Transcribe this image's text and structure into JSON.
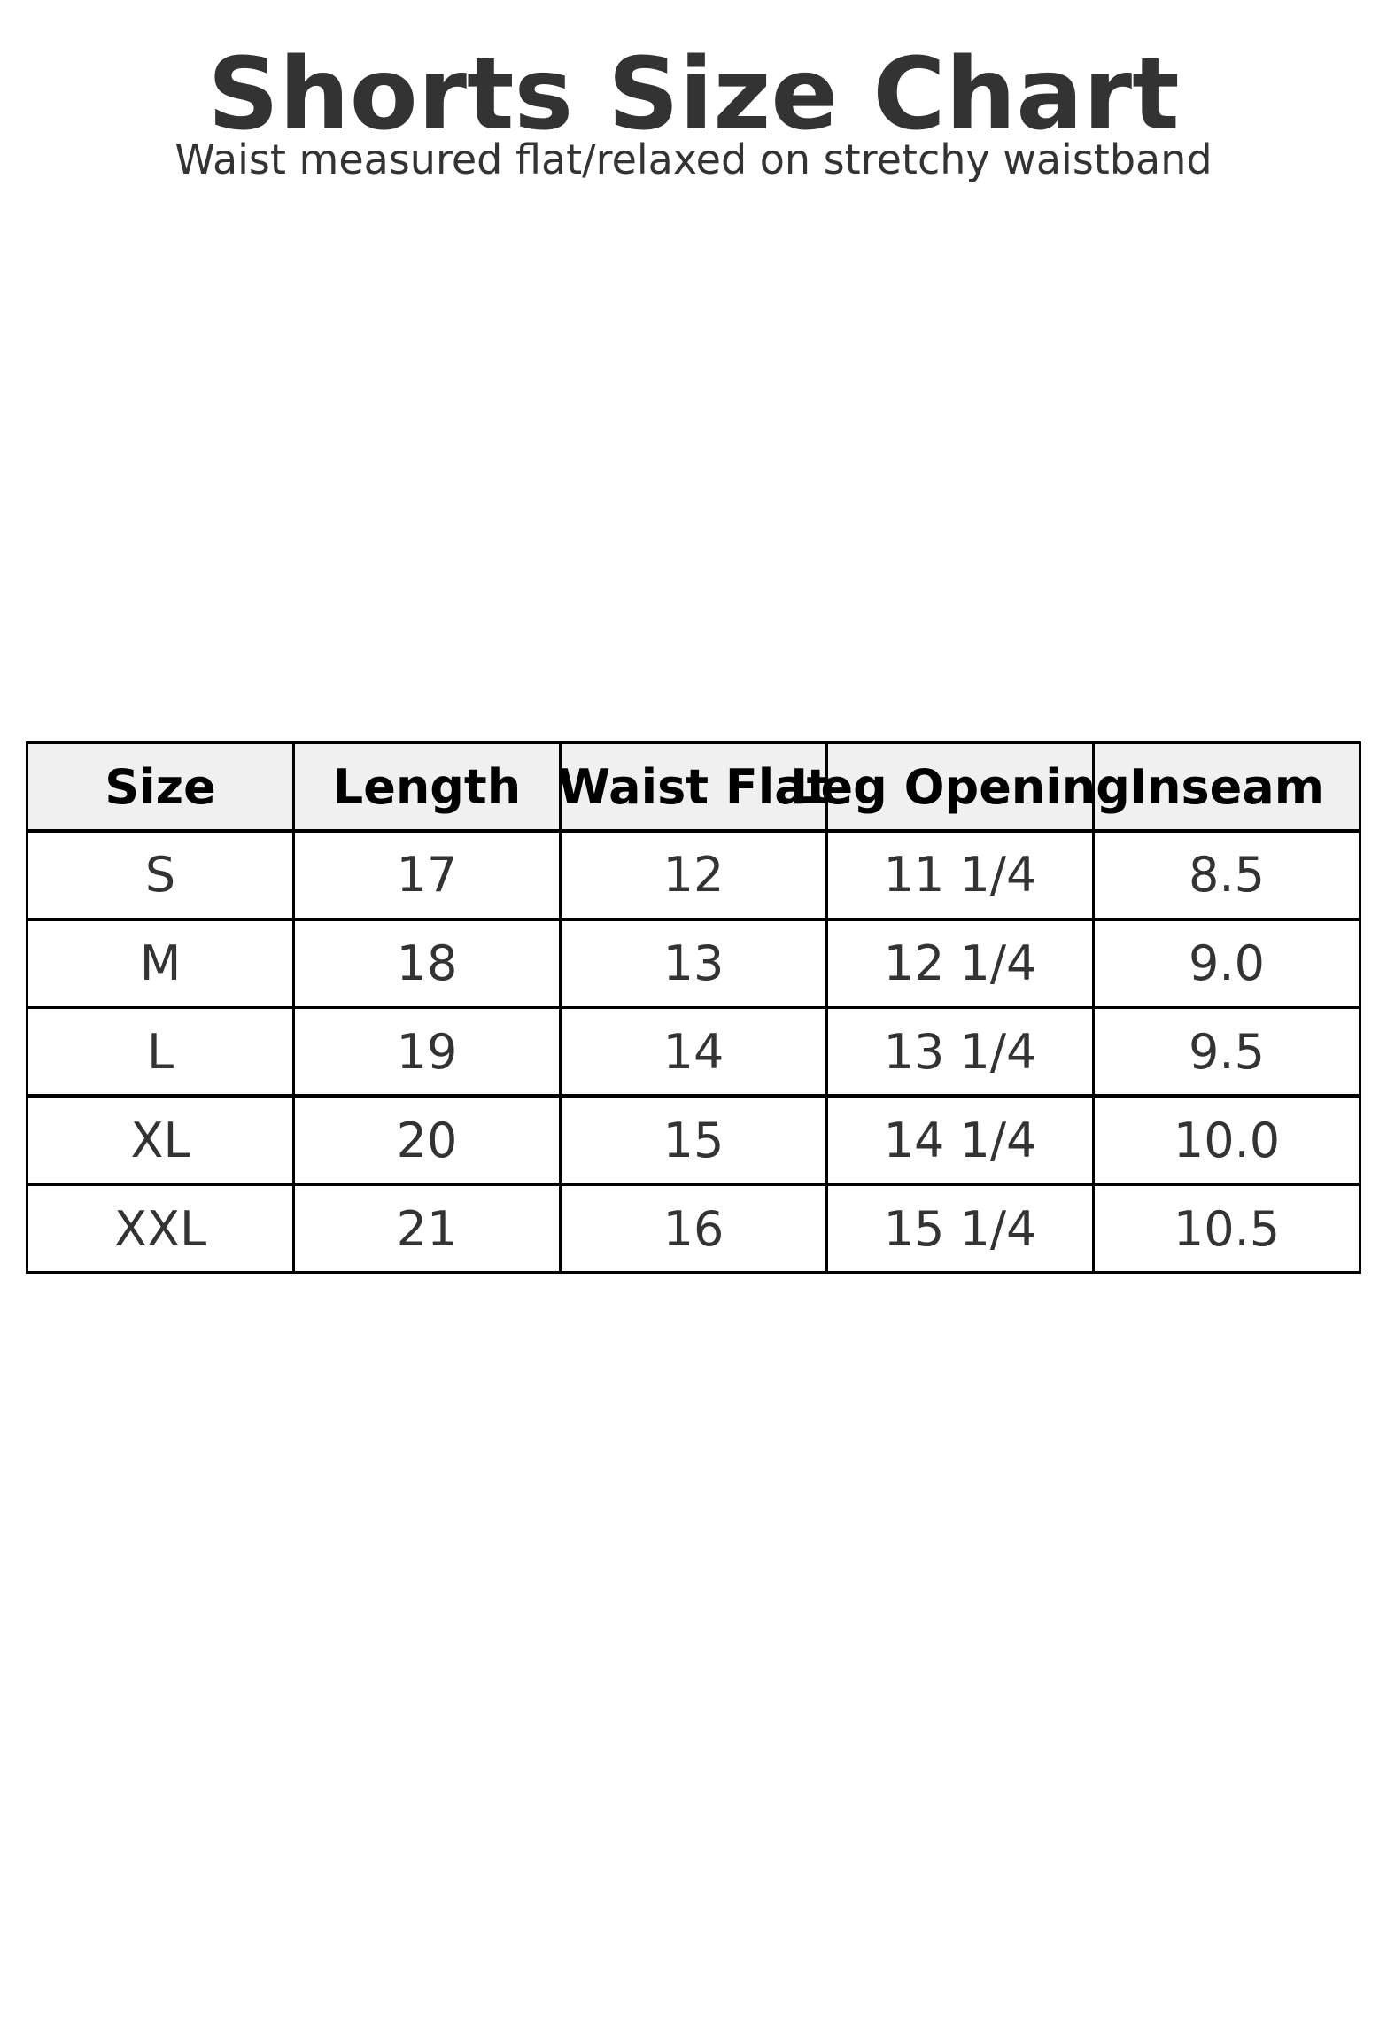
{
  "title": "Shorts Size Chart",
  "subtitle": "Waist measured flat/relaxed on stretchy waistband",
  "table": {
    "headers": [
      "Size",
      "Length",
      "Waist Flat",
      "Leg Opening",
      "Inseam"
    ],
    "rows": [
      [
        "S",
        "17",
        "12",
        "11 1/4",
        "8.5"
      ],
      [
        "M",
        "18",
        "13",
        "12 1/4",
        "9.0"
      ],
      [
        "L",
        "19",
        "14",
        "13 1/4",
        "9.5"
      ],
      [
        "XL",
        "20",
        "15",
        "14 1/4",
        "10.0"
      ],
      [
        "XXL",
        "21",
        "16",
        "15 1/4",
        "10.5"
      ]
    ],
    "header_bg": "#f0f0f0"
  }
}
